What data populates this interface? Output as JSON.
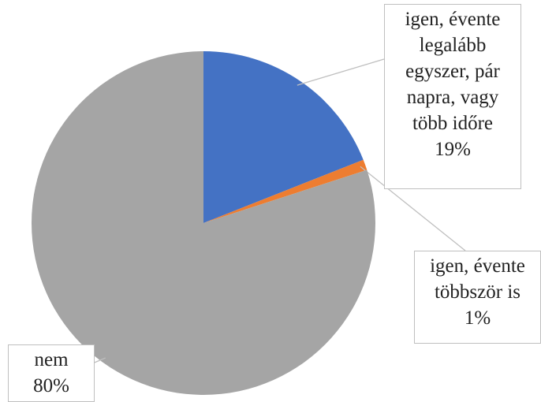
{
  "chart_data": {
    "type": "pie",
    "categories": [
      "igen, évente legalább egyszer, pár napra, vagy több időre",
      "igen, évente többször is",
      "nem"
    ],
    "values": [
      19,
      1,
      80
    ],
    "value_labels": [
      "19%",
      "1%",
      "80%"
    ],
    "colors": [
      "#4472c4",
      "#ed7d31",
      "#a5a5a5"
    ]
  }
}
